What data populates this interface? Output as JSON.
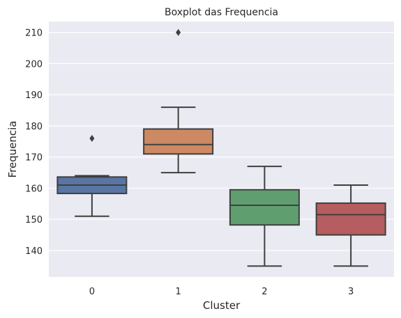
{
  "chart_data": {
    "type": "boxplot",
    "title": "Boxplot das Frequencia",
    "xlabel": "Cluster",
    "ylabel": "Frequencia",
    "categories": [
      "0",
      "1",
      "2",
      "3"
    ],
    "yticks": [
      140,
      150,
      160,
      170,
      180,
      190,
      200,
      210
    ],
    "ylim": [
      131.5,
      213.5
    ],
    "grid": true,
    "colors": {
      "background": "#EAEAF2",
      "grid": "#FFFFFF",
      "outline": "#3F3F3F",
      "text": "#262626"
    },
    "boxes": [
      {
        "category": "0",
        "color": "#5875A4",
        "whisker_low": 151,
        "q1": 158.3,
        "median": 161,
        "q3": 163.6,
        "whisker_high": 164,
        "outliers": [
          176
        ]
      },
      {
        "category": "1",
        "color": "#CC8963",
        "whisker_low": 165,
        "q1": 171,
        "median": 174,
        "q3": 179,
        "whisker_high": 186,
        "outliers": [
          210
        ]
      },
      {
        "category": "2",
        "color": "#5F9E6E",
        "whisker_low": 135,
        "q1": 148.2,
        "median": 154.5,
        "q3": 159.5,
        "whisker_high": 167,
        "outliers": []
      },
      {
        "category": "3",
        "color": "#B55D60",
        "whisker_low": 135,
        "q1": 145,
        "median": 151.5,
        "q3": 155.2,
        "whisker_high": 161,
        "outliers": []
      }
    ]
  }
}
